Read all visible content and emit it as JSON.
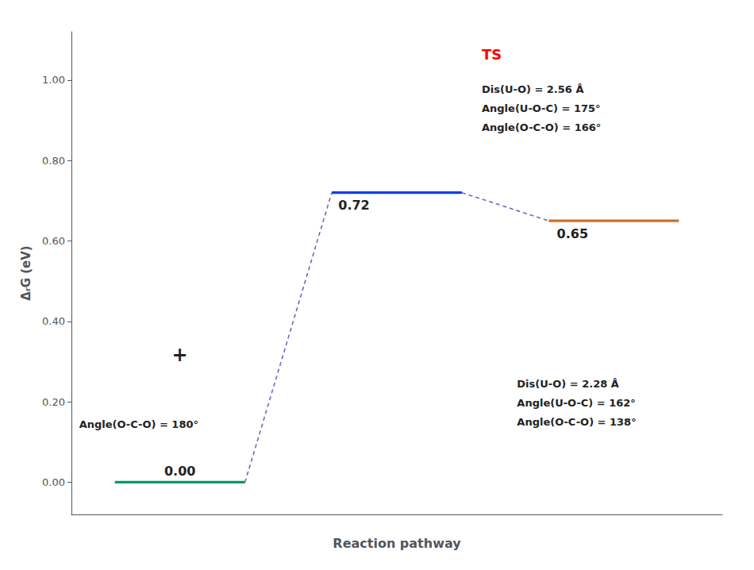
{
  "chart_data": {
    "type": "levels",
    "xlabel": "Reaction pathway",
    "ylabel": "ΔᵣG (eV)",
    "categories": [
      null,
      null,
      null
    ],
    "values": [
      0.0,
      0.72,
      0.65
    ],
    "value_labels": [
      "0.00",
      "0.72",
      "0.65"
    ],
    "data_labels": true,
    "colors": [
      "#009970",
      "#1040e0",
      "#d07020"
    ],
    "line_style": "dashed",
    "color": "#8060c0",
    "ylim": [
      -0.08,
      1.12
    ],
    "yticks": [
      {
        "value": 0,
        "label": "0.00"
      },
      {
        "value": 0.2,
        "label": "0.20"
      },
      {
        "value": 0.4,
        "label": "0.40"
      },
      {
        "value": 0.6,
        "label": "0.60"
      },
      {
        "value": 0.8,
        "label": "0.80"
      },
      {
        "value": 1.0,
        "label": "1.00"
      }
    ],
    "grid": false,
    "tick_labels": "y",
    "annotations": [
      {
        "text": "TS",
        "color": "red"
      },
      {
        "text": "Dis(U-O) = 2.56 Å"
      },
      {
        "text": "Angle(U-O-C) = 175°"
      },
      {
        "text": "Angle(O-C-O) = 166°"
      },
      {
        "text": "Dis(U-O) = 2.28 Å"
      },
      {
        "text": "Angle(U-O-C) = 162°"
      },
      {
        "text": "Angle(O-C-O) = 138°"
      },
      {
        "text": "Angle(O-C-O) = 180°"
      },
      {
        "text": "+"
      }
    ]
  }
}
